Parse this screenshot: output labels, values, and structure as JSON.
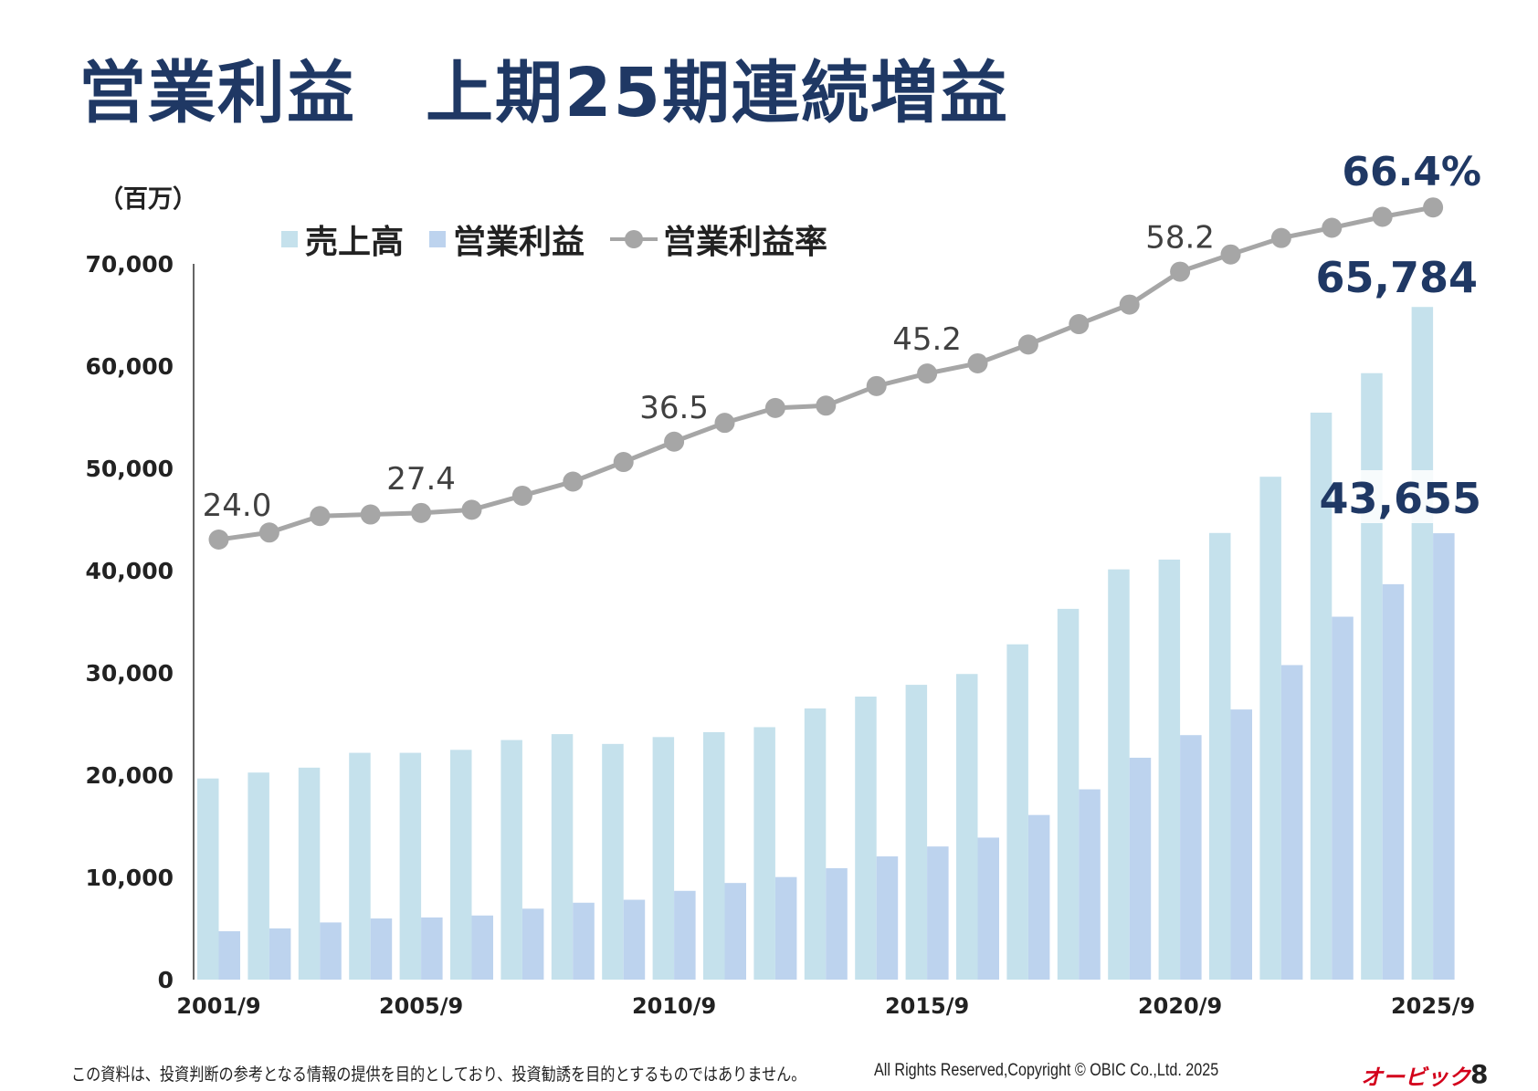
{
  "title": "営業利益　上期25期連続増益",
  "unit": "（百万）",
  "colors": {
    "sales": "#c5e1ec",
    "operating_profit": "#bdd3ee",
    "margin_line": "#a6a6a6",
    "title": "#1f3864"
  },
  "chart_data": {
    "type": "bar",
    "categories": [
      "2001/9",
      "2002/9",
      "2003/9",
      "2004/9",
      "2005/9",
      "2006/9",
      "2007/9",
      "2008/9",
      "2009/9",
      "2010/9",
      "2011/9",
      "2012/9",
      "2013/9",
      "2014/9",
      "2015/9",
      "2016/9",
      "2017/9",
      "2018/9",
      "2019/9",
      "2020/9",
      "2021/9",
      "2022/9",
      "2023/9",
      "2024/9",
      "2025/9"
    ],
    "x_tick_labels": [
      "2001/9",
      "2005/9",
      "2010/9",
      "2015/9",
      "2020/9",
      "2025/9"
    ],
    "y_ticks": [
      "0",
      "10,000",
      "20,000",
      "30,000",
      "40,000",
      "50,000",
      "60,000",
      "70,000"
    ],
    "ylim": [
      0,
      70000
    ],
    "grid": false,
    "legend_placement": "top-left",
    "series": [
      {
        "name": "売上高",
        "type": "bar",
        "values": [
          19670,
          20250,
          20730,
          22180,
          22180,
          22470,
          23430,
          24010,
          23050,
          23720,
          24200,
          24690,
          26520,
          27680,
          28830,
          29890,
          32790,
          36260,
          40120,
          41080,
          43680,
          49180,
          55450,
          59310,
          65784
        ]
      },
      {
        "name": "営業利益",
        "type": "bar",
        "values": [
          4730,
          5010,
          5590,
          5980,
          6080,
          6270,
          6940,
          7520,
          7810,
          8680,
          9450,
          10030,
          10900,
          12050,
          13020,
          13890,
          16100,
          18610,
          21700,
          23910,
          26420,
          30760,
          35490,
          38670,
          43655
        ]
      },
      {
        "name": "営業利益率",
        "type": "line",
        "axis": "secondary-hidden",
        "values": [
          24.0,
          24.9,
          27.0,
          27.2,
          27.4,
          27.8,
          29.6,
          31.4,
          33.9,
          36.5,
          38.9,
          40.8,
          41.1,
          43.6,
          45.2,
          46.5,
          48.9,
          51.5,
          54.0,
          58.2,
          60.4,
          62.5,
          63.8,
          65.2,
          66.4
        ]
      }
    ],
    "annotations": {
      "margin_labels": [
        {
          "index": 0,
          "text": "24.0"
        },
        {
          "index": 4,
          "text": "27.4"
        },
        {
          "index": 9,
          "text": "36.5"
        },
        {
          "index": 14,
          "text": "45.2"
        },
        {
          "index": 19,
          "text": "58.2"
        },
        {
          "index": 24,
          "text": "66.4%"
        }
      ],
      "sales_last": "65,784",
      "profit_last": "43,655"
    }
  },
  "footer": {
    "disclaimer": "この資料は、投資判断の参考となる情報の提供を目的としており、投資勧誘を目的とするものではありません。",
    "copyright": "All Rights Reserved,Copyright © OBIC Co.,Ltd. 2025",
    "logo": "オービック",
    "page": "8"
  }
}
